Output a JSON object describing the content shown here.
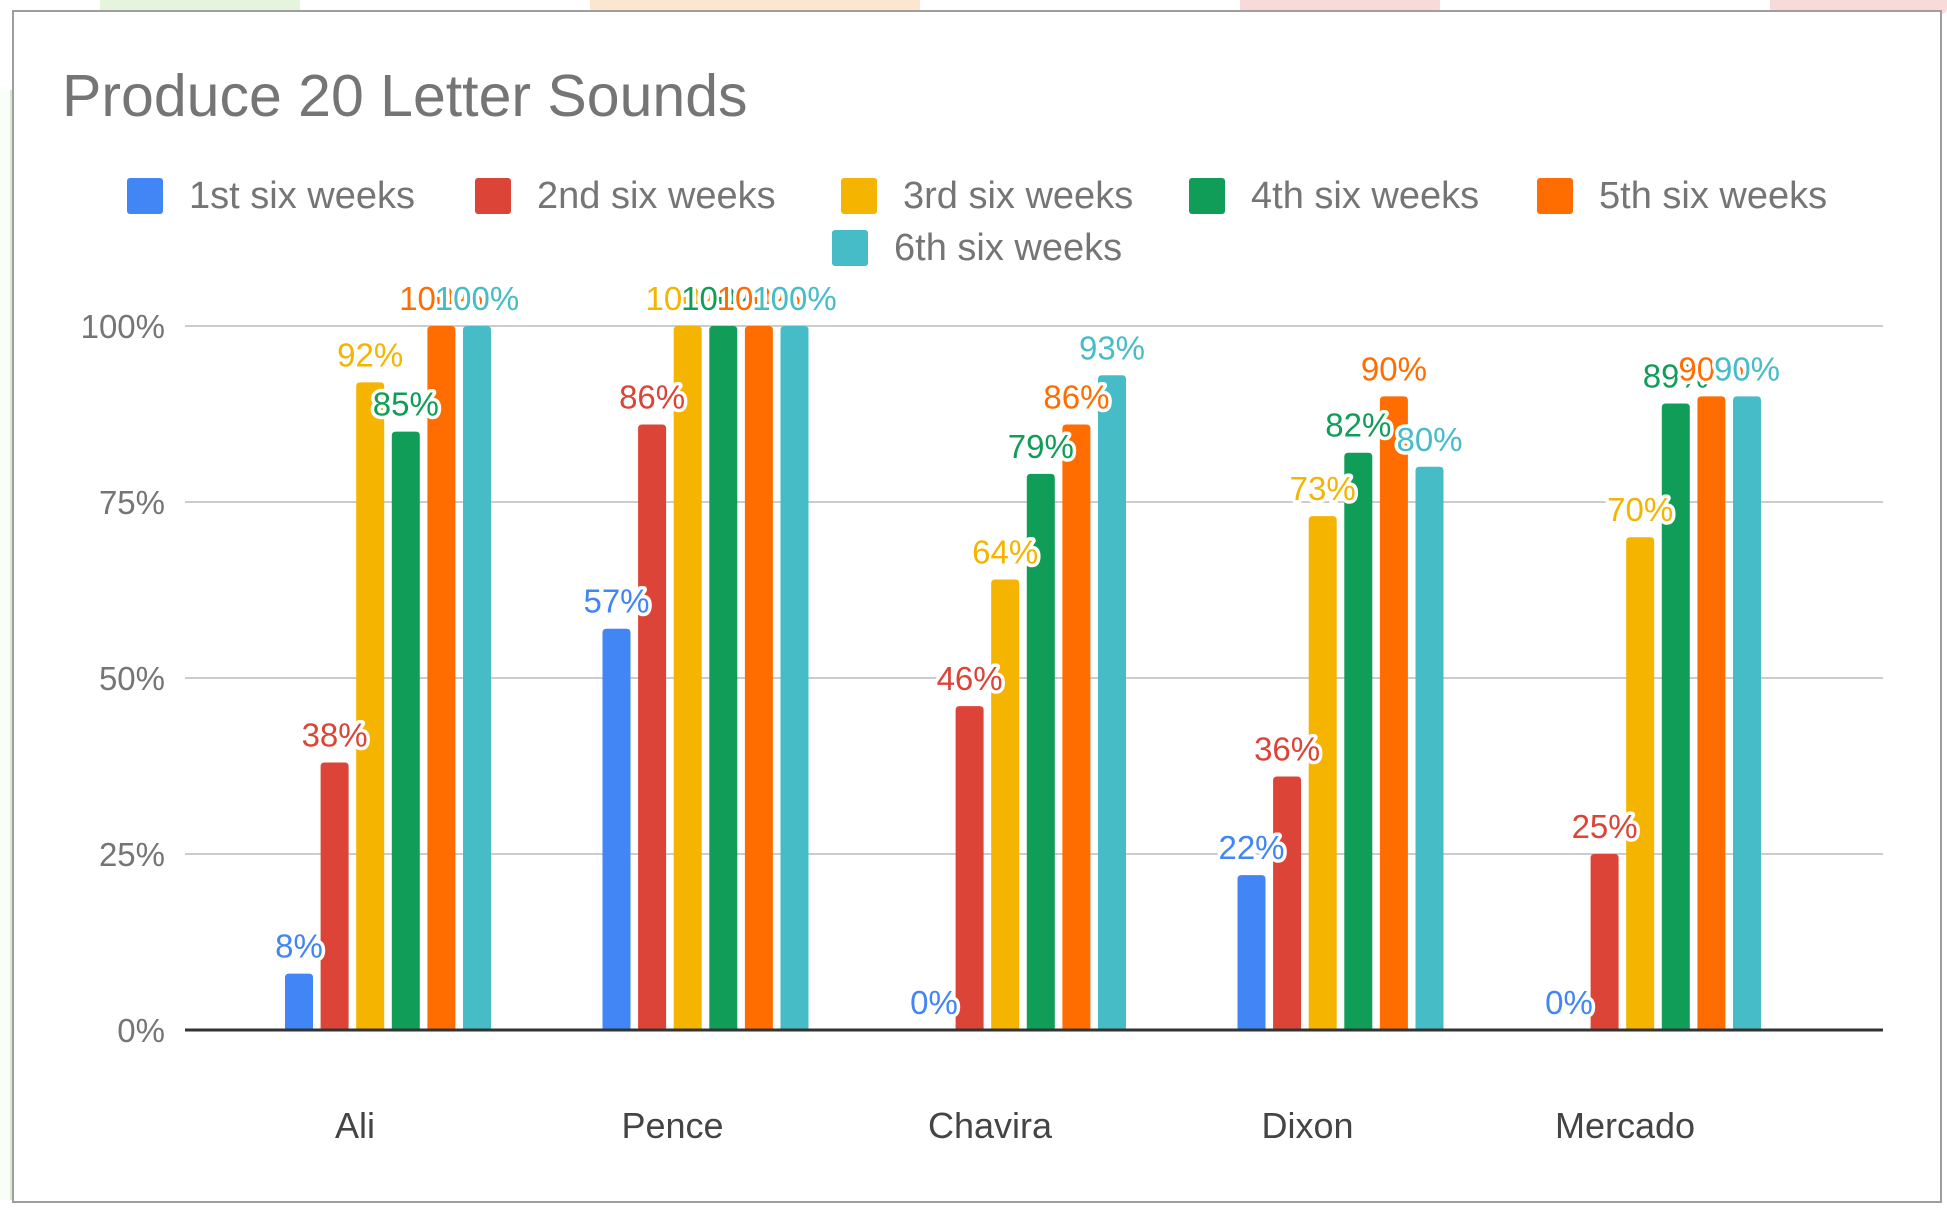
{
  "chart_data": {
    "type": "bar",
    "title": "Produce 20 Letter Sounds",
    "xlabel": "",
    "ylabel": "",
    "ylim": [
      0,
      1
    ],
    "yticks": [
      "0%",
      "25%",
      "50%",
      "75%",
      "100%"
    ],
    "ytick_values": [
      0,
      0.25,
      0.5,
      0.75,
      1
    ],
    "grid": true,
    "legend_position": "top",
    "categories": [
      "Ali",
      "Pence",
      "Chavira",
      "Dixon",
      "Mercado"
    ],
    "series": [
      {
        "name": "1st six weeks",
        "color": "#4285f4",
        "values": [
          0.08,
          0.57,
          0.0,
          0.22,
          0.0
        ],
        "labels": [
          "8%",
          "57%",
          "0%",
          "22%",
          "0%"
        ]
      },
      {
        "name": "2nd six weeks",
        "color": "#db4437",
        "values": [
          0.38,
          0.86,
          0.46,
          0.36,
          0.25
        ],
        "labels": [
          "38%",
          "86%",
          "46%",
          "36%",
          "25%"
        ]
      },
      {
        "name": "3rd six weeks",
        "color": "#f4b400",
        "values": [
          0.92,
          1.0,
          0.64,
          0.73,
          0.7
        ],
        "labels": [
          "92%",
          "100%",
          "64%",
          "73%",
          "70%"
        ]
      },
      {
        "name": "4th six weeks",
        "color": "#0f9d58",
        "values": [
          0.85,
          1.0,
          0.79,
          0.82,
          0.89
        ],
        "labels": [
          "85%",
          "100%",
          "79%",
          "82%",
          "89%"
        ]
      },
      {
        "name": "5th six weeks",
        "color": "#ff6d00",
        "values": [
          1.0,
          1.0,
          0.86,
          0.9,
          0.9
        ],
        "labels": [
          "100%",
          "100%",
          "86%",
          "90%",
          "90%"
        ]
      },
      {
        "name": "6th six weeks",
        "color": "#46bdc6",
        "values": [
          1.0,
          1.0,
          0.93,
          0.8,
          0.9
        ],
        "labels": [
          "100%",
          "100%",
          "93%",
          "80%",
          "90%"
        ]
      }
    ]
  }
}
